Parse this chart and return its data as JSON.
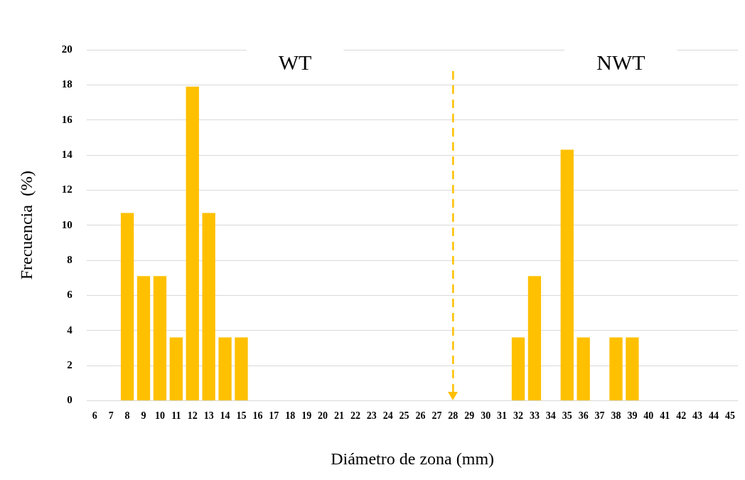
{
  "chart_data": {
    "type": "bar",
    "xlabel": "Diámetro de zona (mm)",
    "ylabel": "Frecuencia  (%)",
    "categories": [
      "6",
      "7",
      "8",
      "9",
      "10",
      "11",
      "12",
      "13",
      "14",
      "15",
      "16",
      "17",
      "18",
      "19",
      "20",
      "21",
      "22",
      "23",
      "24",
      "25",
      "26",
      "27",
      "28",
      "29",
      "30",
      "31",
      "32",
      "33",
      "34",
      "35",
      "36",
      "37",
      "38",
      "39",
      "40",
      "41",
      "42",
      "43",
      "44",
      "45"
    ],
    "values": [
      0,
      0,
      10.7,
      7.1,
      7.1,
      3.6,
      17.9,
      10.7,
      3.6,
      3.6,
      0,
      0,
      0,
      0,
      0,
      0,
      0,
      0,
      0,
      0,
      0,
      0,
      0,
      0,
      0,
      0,
      3.6,
      7.1,
      0,
      14.3,
      3.6,
      0,
      3.6,
      3.6,
      0,
      0,
      0,
      0,
      0,
      0
    ],
    "color": "#ffc000",
    "ylim": [
      0,
      20
    ],
    "yticks": [
      0,
      2,
      4,
      6,
      8,
      10,
      12,
      14,
      16,
      18,
      20
    ],
    "grid": "y",
    "legend": false,
    "ref_lines": [
      {
        "axis": "x",
        "value": "28",
        "color": "#ffc000",
        "line_style": "dashed"
      }
    ],
    "annotations": [
      "WT",
      "NWT"
    ]
  }
}
